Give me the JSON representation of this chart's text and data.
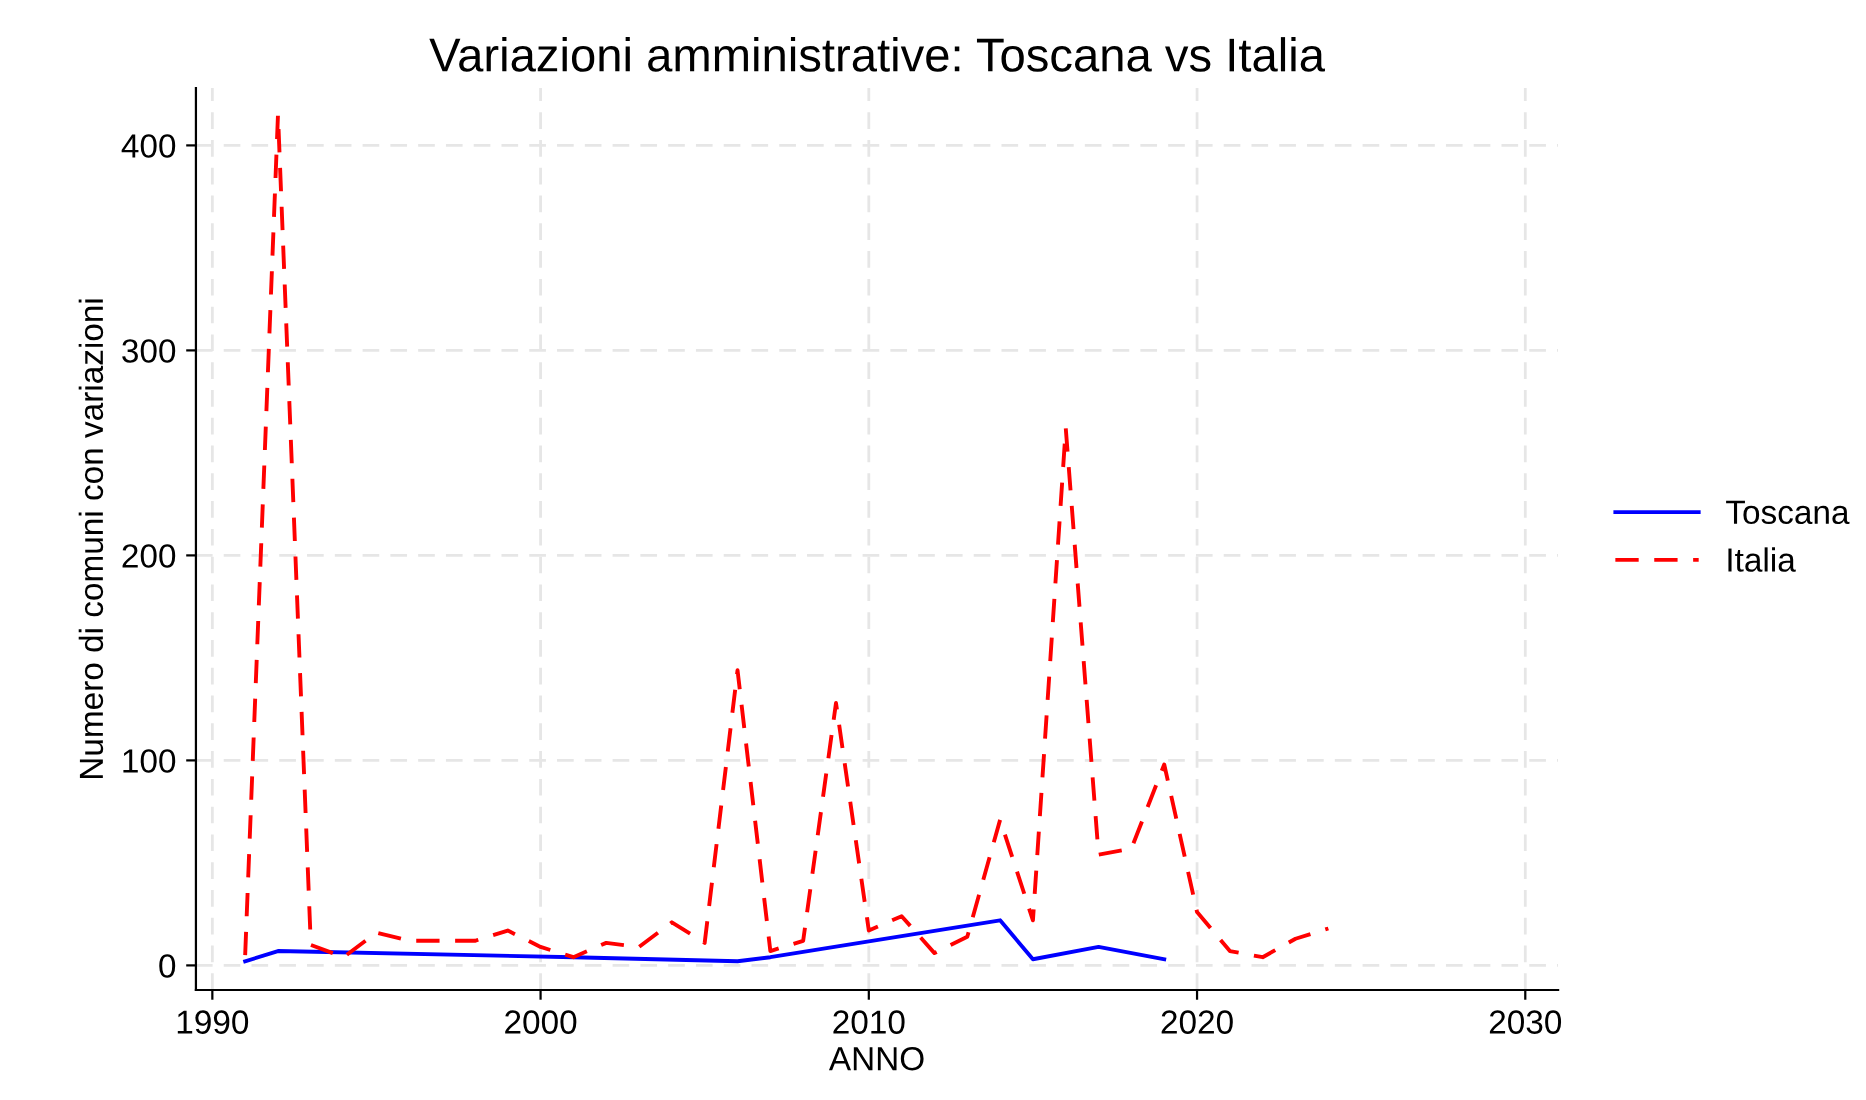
{
  "chart_data": {
    "type": "line",
    "title": "Variazioni amministrative: Toscana vs Italia",
    "xlabel": "ANNO",
    "ylabel": "Numero di comuni con variazioni",
    "xlim": [
      1989.5,
      2031
    ],
    "ylim": [
      -12,
      428
    ],
    "xticks": [
      1990,
      2000,
      2010,
      2020,
      2030
    ],
    "yticks": [
      0,
      100,
      200,
      300,
      400
    ],
    "grid": true,
    "legend": "right",
    "series": [
      {
        "name": "Toscana",
        "color": "#0000ff",
        "line_style": "solid",
        "x": [
          1991,
          1992,
          2001,
          2006,
          2007,
          2014,
          2015,
          2017,
          2019
        ],
        "values": [
          2,
          7,
          4,
          2,
          4,
          22,
          3,
          9,
          3
        ]
      },
      {
        "name": "Italia",
        "color": "#ff0000",
        "line_style": "dashed",
        "x": [
          1991,
          1992,
          1993,
          1994,
          1995,
          1996,
          1997,
          1998,
          1999,
          2000,
          2001,
          2002,
          2003,
          2004,
          2005,
          2006,
          2007,
          2008,
          2009,
          2010,
          2011,
          2012,
          2013,
          2014,
          2015,
          2016,
          2017,
          2018,
          2019,
          2020,
          2021,
          2022,
          2023,
          2024
        ],
        "values": [
          5,
          415,
          10,
          4,
          16,
          12,
          12,
          12,
          17,
          9,
          4,
          11,
          9,
          21,
          11,
          144,
          7,
          12,
          128,
          17,
          24,
          6,
          14,
          71,
          22,
          262,
          54,
          57,
          98,
          26,
          7,
          4,
          13,
          18
        ]
      }
    ]
  }
}
